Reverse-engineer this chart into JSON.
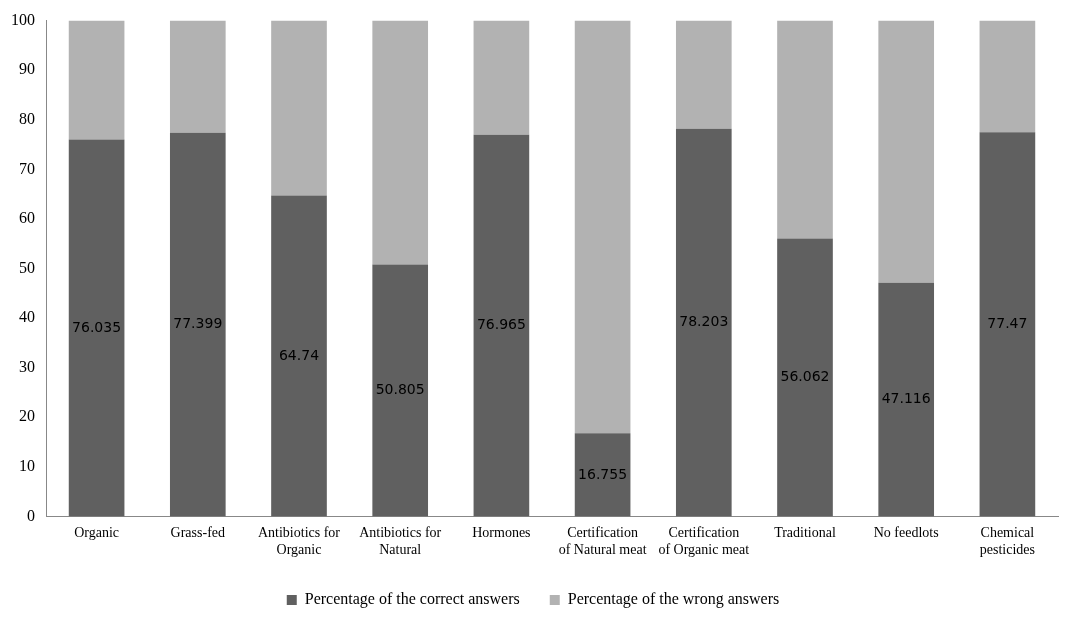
{
  "chart_data": {
    "type": "bar",
    "stacked": true,
    "categories": [
      "Organic",
      "Grass-fed",
      "Antibiotics for Organic",
      "Antibiotics for Natural",
      "Hormones",
      "Certification of Natural meat",
      "Certification of Organic meat",
      "Traditional",
      "No feedlots",
      "Chemical pesticides"
    ],
    "series": [
      {
        "name": "Percentage of the correct answers",
        "color": "#606060",
        "values": [
          76.035,
          77.399,
          64.74,
          50.805,
          76.965,
          16.755,
          78.203,
          56.062,
          47.116,
          77.47
        ],
        "value_labels": [
          "76.035",
          "77.399",
          "64.74",
          "50.805",
          "76.965",
          "16.755",
          "78.203",
          "56.062",
          "47.116",
          "77.47"
        ]
      },
      {
        "name": "Percentage of the wrong answers",
        "color": "#b2b2b2",
        "values": [
          23.965,
          22.601,
          35.26,
          49.195,
          23.035,
          83.245,
          21.797,
          43.938,
          52.884,
          22.53
        ]
      }
    ],
    "ylim": [
      0,
      100
    ],
    "yticks": [
      0,
      10,
      20,
      30,
      40,
      50,
      60,
      70,
      80,
      90,
      100
    ],
    "grid": false,
    "legend": "bottom"
  }
}
